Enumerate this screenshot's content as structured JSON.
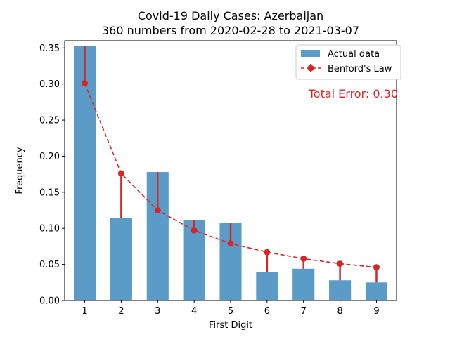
{
  "chart_data": {
    "type": "bar",
    "title": "Covid-19 Daily Cases: Azerbaijan",
    "subtitle": "360 numbers from 2020-02-28 to 2021-03-07",
    "xlabel": "First Digit",
    "ylabel": "Frequency",
    "categories": [
      "1",
      "2",
      "3",
      "4",
      "5",
      "6",
      "7",
      "8",
      "9"
    ],
    "series": [
      {
        "name": "Actual data",
        "kind": "bar",
        "color": "#5a9bc8",
        "values": [
          0.353,
          0.114,
          0.178,
          0.111,
          0.108,
          0.039,
          0.044,
          0.028,
          0.025
        ]
      },
      {
        "name": "Benford's Law",
        "kind": "line-dashed-markers",
        "color": "#d62728",
        "values": [
          0.301,
          0.176,
          0.125,
          0.097,
          0.079,
          0.067,
          0.058,
          0.051,
          0.046
        ]
      }
    ],
    "ylim": [
      0,
      0.36
    ],
    "yticks": [
      "0.00",
      "0.05",
      "0.10",
      "0.15",
      "0.20",
      "0.25",
      "0.30",
      "0.35"
    ],
    "grid": false,
    "legend_position": "top-right",
    "annotation": {
      "text": "Total Error: 0.30",
      "color": "#d62728"
    }
  }
}
